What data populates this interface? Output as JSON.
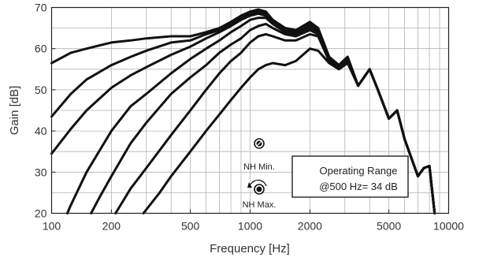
{
  "chart_data": {
    "type": "line",
    "xlabel": "Frequency [Hz]",
    "ylabel": "Gain [dB]",
    "xscale": "log",
    "xlim": [
      100,
      10000
    ],
    "ylim": [
      20,
      70
    ],
    "grid": true,
    "x_ticks": [
      100,
      200,
      500,
      1000,
      2000,
      5000,
      10000
    ],
    "x_tick_labels": [
      "100",
      "200",
      "500",
      "1000",
      "2000",
      "5000",
      "10000"
    ],
    "y_ticks": [
      20,
      30,
      40,
      50,
      60,
      70
    ],
    "y_tick_labels": [
      "20",
      "30",
      "40",
      "50",
      "60",
      "70"
    ],
    "series": [
      {
        "x": [
          100,
          125,
          150,
          200,
          250,
          300,
          400,
          500,
          600,
          700,
          800,
          900,
          1000,
          1100,
          1200,
          1300,
          1500,
          1700,
          2000,
          2200,
          2500,
          2800,
          3100,
          3500,
          4000,
          4400,
          5000,
          5500,
          6000,
          7000,
          7500,
          8000,
          8500
        ],
        "y": [
          56.5,
          59.0,
          60.0,
          61.5,
          62.0,
          62.5,
          63.0,
          63.0,
          64.0,
          65.0,
          66.5,
          68.0,
          69.0,
          69.5,
          69.0,
          67.0,
          65.0,
          64.5,
          66.5,
          65.0,
          58.0,
          56.0,
          58.0,
          51.0,
          55.0,
          50.0,
          43.0,
          45.0,
          38.0,
          29.0,
          31.0,
          31.5,
          20.0
        ]
      },
      {
        "x": [
          100,
          125,
          150,
          200,
          250,
          300,
          400,
          500,
          600,
          700,
          800,
          900,
          1000,
          1100,
          1200,
          1300,
          1500,
          1700,
          2000,
          2200,
          2500,
          2800,
          3100,
          3500,
          4000,
          4400,
          5000,
          5500,
          6000,
          7000,
          7500,
          8000,
          8500
        ],
        "y": [
          43.5,
          49.0,
          52.5,
          56.0,
          58.0,
          59.5,
          61.5,
          62.0,
          63.5,
          64.5,
          66.0,
          67.5,
          68.5,
          69.0,
          68.5,
          67.0,
          65.0,
          64.5,
          66.0,
          65.0,
          58.0,
          56.0,
          58.0,
          51.0,
          55.0,
          50.0,
          43.0,
          45.0,
          38.0,
          29.0,
          31.0,
          31.5,
          20.0
        ]
      },
      {
        "x": [
          100,
          125,
          150,
          200,
          250,
          300,
          400,
          500,
          600,
          700,
          800,
          900,
          1000,
          1100,
          1200,
          1300,
          1500,
          1700,
          2000,
          2200,
          2500,
          2800,
          3100,
          3500,
          4000,
          4400,
          5000,
          5500,
          6000,
          7000,
          7500,
          8000,
          8500
        ],
        "y": [
          34.5,
          40.5,
          45.0,
          50.5,
          53.5,
          55.5,
          58.5,
          60.5,
          62.5,
          64.0,
          65.5,
          67.0,
          68.0,
          68.5,
          68.0,
          66.5,
          64.5,
          64.0,
          65.5,
          64.5,
          57.5,
          55.5,
          57.5,
          51.0,
          55.0,
          50.0,
          43.0,
          45.0,
          38.0,
          29.0,
          31.0,
          31.5,
          20.0
        ]
      },
      {
        "x": [
          120,
          125,
          150,
          200,
          250,
          300,
          400,
          500,
          600,
          700,
          800,
          900,
          1000,
          1100,
          1200,
          1300,
          1500,
          1700,
          2000,
          2200,
          2500,
          2800,
          3100,
          3500,
          4000,
          4400,
          5000,
          5500,
          6000,
          7000,
          7500,
          8000,
          8500
        ],
        "y": [
          20.0,
          22.0,
          30.0,
          40.0,
          46.0,
          49.0,
          54.0,
          57.5,
          60.0,
          62.0,
          64.0,
          65.5,
          67.0,
          67.5,
          67.5,
          66.0,
          64.0,
          63.5,
          65.0,
          64.0,
          57.5,
          55.5,
          57.0,
          51.0,
          55.0,
          50.0,
          43.0,
          45.0,
          38.0,
          29.0,
          31.0,
          31.5,
          20.0
        ]
      },
      {
        "x": [
          158,
          175,
          200,
          250,
          300,
          400,
          500,
          600,
          700,
          800,
          900,
          1000,
          1100,
          1200,
          1300,
          1500,
          1700,
          2000,
          2200,
          2500,
          2800,
          3100,
          3500,
          4000,
          4400,
          5000,
          5500,
          6000,
          7000,
          7500,
          8000,
          8500
        ],
        "y": [
          20.0,
          24.0,
          29.0,
          37.0,
          42.0,
          49.0,
          53.0,
          56.0,
          59.0,
          61.0,
          62.5,
          64.5,
          65.5,
          66.0,
          65.0,
          63.5,
          63.0,
          64.5,
          63.5,
          57.0,
          55.5,
          57.0,
          51.0,
          55.0,
          50.0,
          43.0,
          45.0,
          38.0,
          29.0,
          31.0,
          31.5,
          20.0
        ]
      },
      {
        "x": [
          210,
          250,
          300,
          400,
          500,
          600,
          700,
          800,
          900,
          1000,
          1100,
          1200,
          1300,
          1500,
          1700,
          2000,
          2200,
          2500,
          2800,
          3100,
          3500,
          4000,
          4400,
          5000,
          5500,
          6000,
          7000,
          7500,
          8000,
          8500
        ],
        "y": [
          20.0,
          26.0,
          31.0,
          39.0,
          45.0,
          50.0,
          54.0,
          57.0,
          59.0,
          61.5,
          63.0,
          63.5,
          63.0,
          62.0,
          62.0,
          63.5,
          63.0,
          57.0,
          55.5,
          57.0,
          51.0,
          55.0,
          50.0,
          43.0,
          45.0,
          38.0,
          29.0,
          31.0,
          31.5,
          20.0
        ]
      },
      {
        "x": [
          290,
          350,
          400,
          500,
          600,
          700,
          800,
          900,
          1000,
          1100,
          1200,
          1300,
          1500,
          1700,
          2000,
          2200,
          2500,
          2800,
          3100,
          3500,
          4000,
          4400,
          5000,
          5500,
          6000,
          7000,
          7500,
          8000,
          8500
        ],
        "y": [
          20.0,
          25.0,
          29.0,
          35.0,
          40.0,
          44.0,
          47.5,
          50.5,
          53.0,
          55.0,
          56.0,
          56.5,
          56.0,
          57.0,
          60.0,
          59.5,
          56.5,
          55.0,
          56.5,
          51.0,
          55.0,
          50.0,
          43.0,
          45.0,
          38.0,
          29.0,
          31.0,
          31.5,
          20.0
        ]
      }
    ],
    "annotations": [
      {
        "text": "NH Min.",
        "x": 1000,
        "y": 31
      },
      {
        "text": "NH Max.",
        "x": 1000,
        "y": 21.5
      }
    ],
    "textbox": {
      "lines": [
        "Operating Range",
        "@500 Hz= 34 dB"
      ]
    }
  }
}
